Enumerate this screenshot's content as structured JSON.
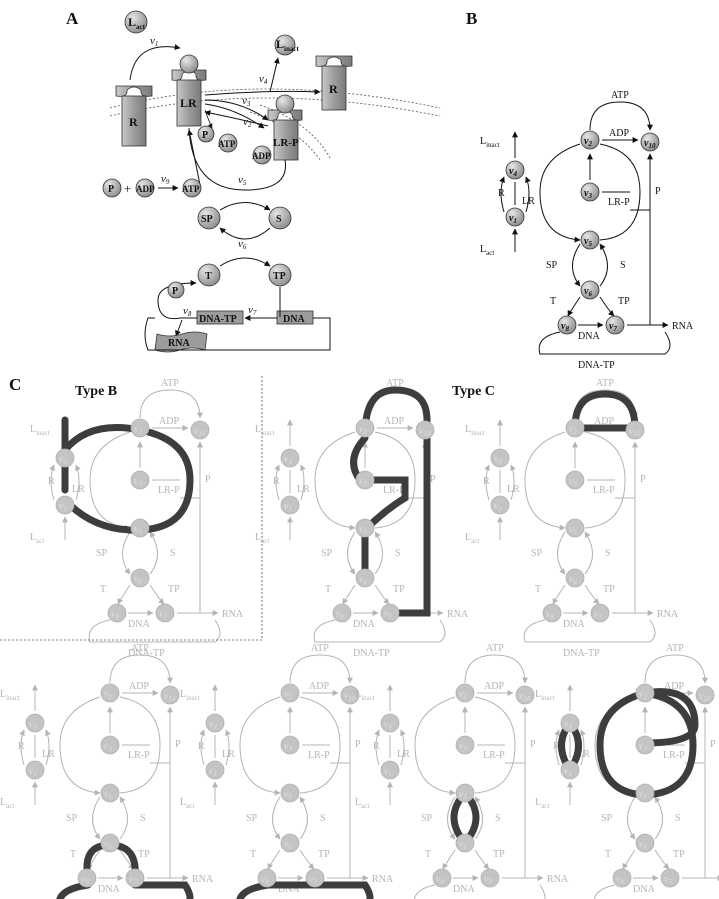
{
  "panels": {
    "a": "A",
    "b": "B",
    "c": "C"
  },
  "types": {
    "b": "Type B",
    "c": "Type C"
  },
  "panel_a": {
    "l_act": "L",
    "l_act_sub": "act",
    "l_inact": "L",
    "l_inact_sub": "inact",
    "r": "R",
    "lr": "LR",
    "lrp": "LR-P",
    "p": "P",
    "atp": "ATP",
    "adp": "ADP",
    "plus": "+",
    "sp": "SP",
    "s": "S",
    "t": "T",
    "tp": "TP",
    "dna": "DNA",
    "dnatp": "DNA-TP",
    "rna": "RNA",
    "v1": "v",
    "v1s": "1",
    "v2": "v",
    "v2s": "2",
    "v3": "v",
    "v3s": "3",
    "v4": "v",
    "v4s": "4",
    "v5": "v",
    "v5s": "5",
    "v6": "v",
    "v6s": "6",
    "v7": "v",
    "v7s": "7",
    "v8": "v",
    "v8s": "8",
    "v9": "v",
    "v9s": "9"
  },
  "network": {
    "atp": "ATP",
    "adp": "ADP",
    "lr": "LR",
    "lrp": "LR-P",
    "p": "P",
    "r": "R",
    "sp": "SP",
    "s": "S",
    "t": "T",
    "tp": "TP",
    "dna": "DNA",
    "rna": "RNA",
    "dnatp": "DNA-TP",
    "l": "L",
    "inact": "inact",
    "act": "act",
    "nodes": {
      "v1": [
        "v",
        "1"
      ],
      "v2": [
        "v",
        "2"
      ],
      "v3": [
        "v",
        "3"
      ],
      "v4": [
        "v",
        "4"
      ],
      "v5": [
        "v",
        "5"
      ],
      "v6": [
        "v",
        "6"
      ],
      "v7": [
        "v",
        "7"
      ],
      "v8": [
        "v",
        "8"
      ],
      "v10": [
        "v",
        "10"
      ]
    }
  },
  "colors": {
    "node_fill": "#a8a8a8",
    "loop": "#3d3d3d",
    "faded": "#b4b4b4",
    "line": "#111111"
  }
}
